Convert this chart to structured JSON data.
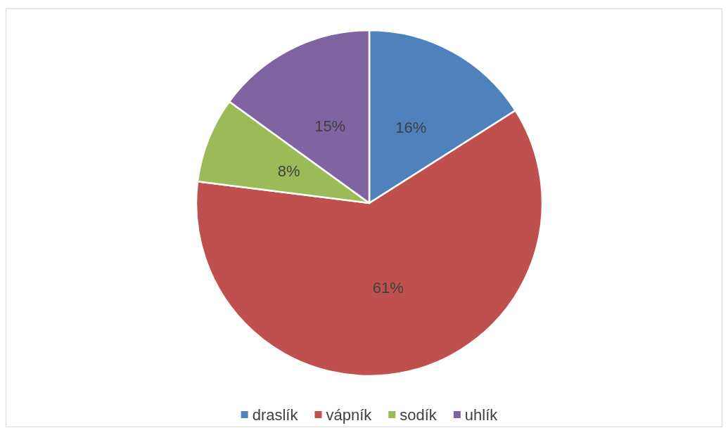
{
  "chart_data": {
    "type": "pie",
    "categories": [
      "draslík",
      "vápník",
      "sodík",
      "uhlík"
    ],
    "values": [
      16,
      61,
      8,
      15
    ],
    "colors": [
      "#4f81bd",
      "#c0504d",
      "#9bbb59",
      "#8064a2"
    ],
    "value_labels": [
      "16%",
      "61%",
      "8%",
      "15%"
    ],
    "legend": "bottom"
  }
}
